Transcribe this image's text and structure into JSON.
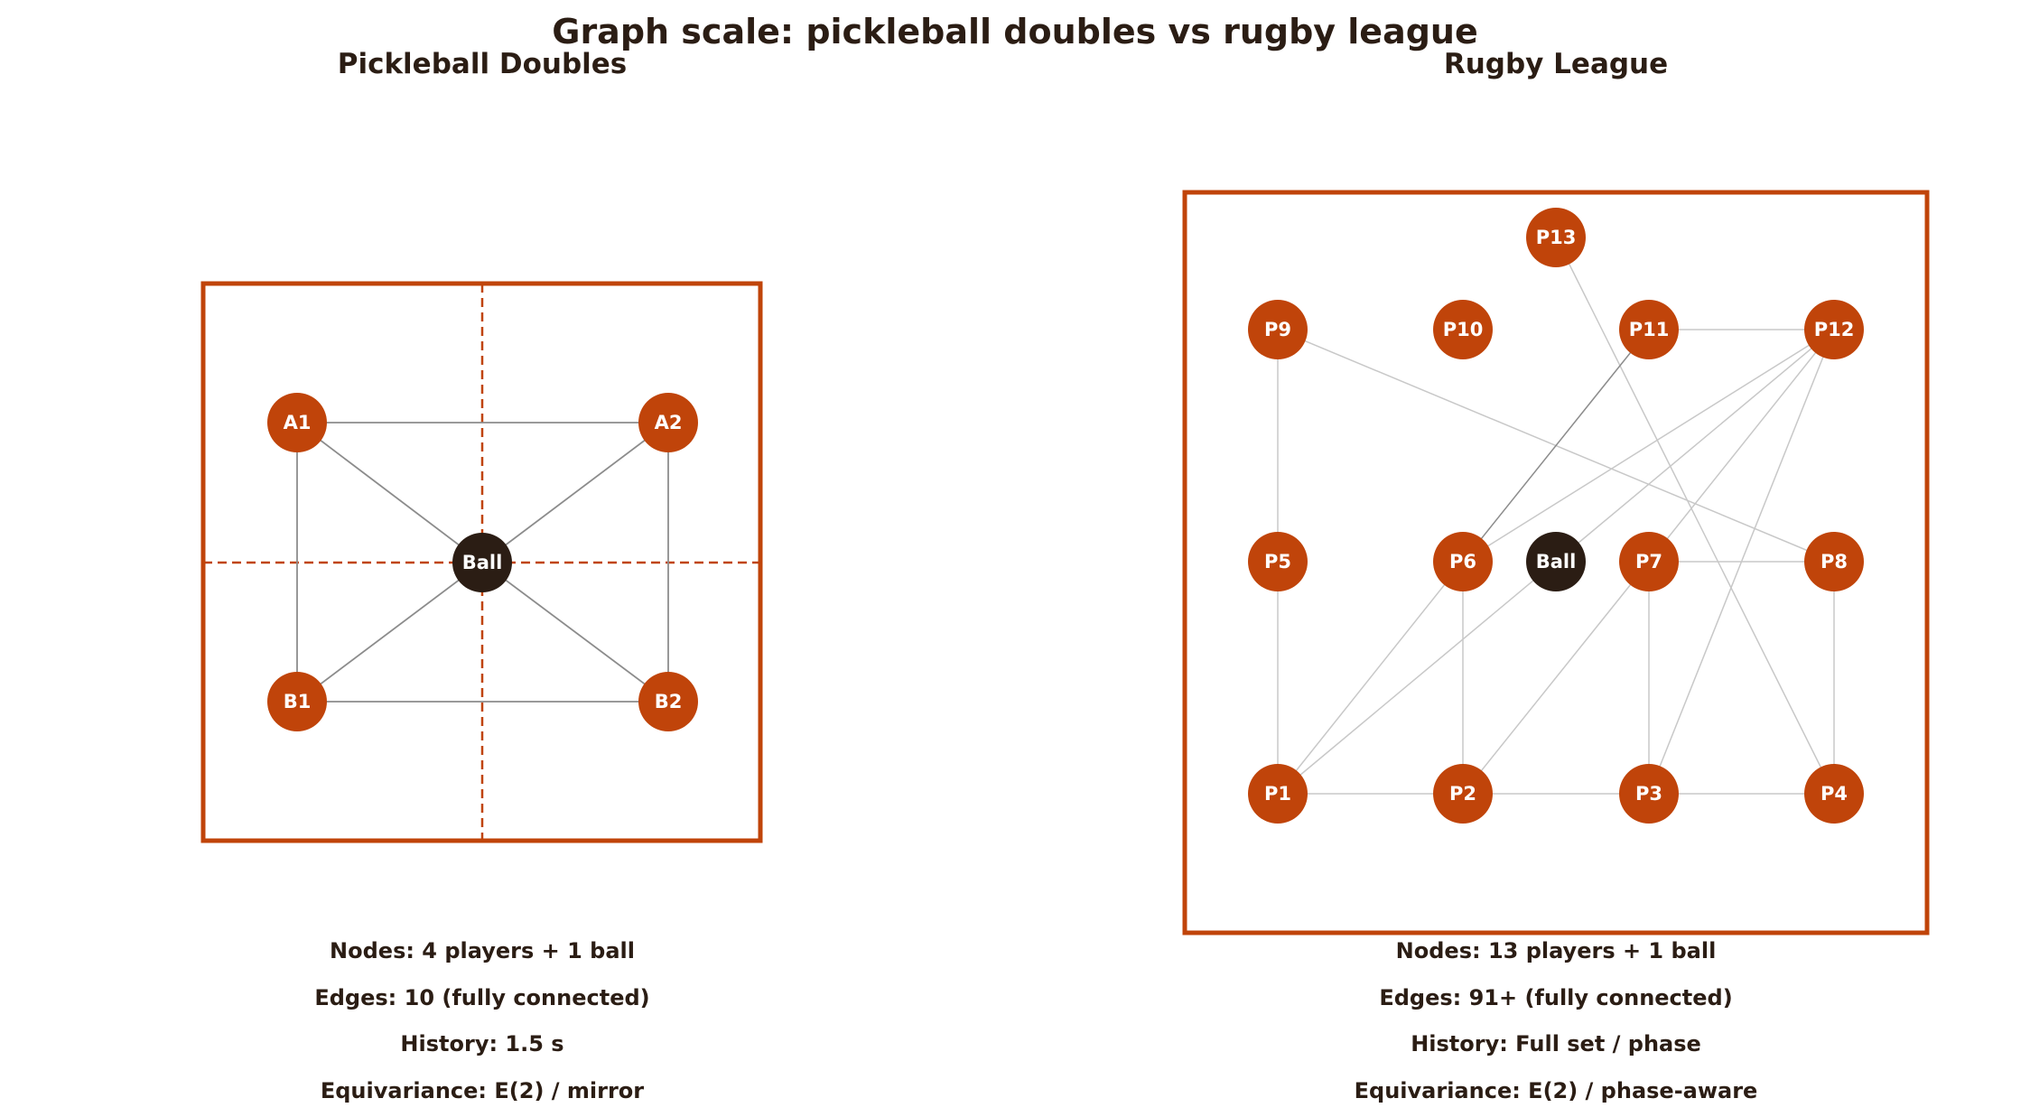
{
  "title": "Graph scale: pickleball doubles vs rugby league",
  "colors": {
    "text": "#2b1d14",
    "accent": "#c0440a",
    "ball": "#2b1d14",
    "node_label": "#ffffff",
    "edge_dark": "#8c8c8c",
    "edge_light": "#c8c8c8"
  },
  "panels": [
    {
      "key": "pickleball",
      "title": "Pickleball Doubles",
      "stats": [
        "Nodes: 4 players + 1 ball",
        "Edges: 10 (fully connected)",
        "History: 1.5 s",
        "Equivariance: E(2) / mirror"
      ],
      "nodes": [
        {
          "id": "A1",
          "label": "A1",
          "kind": "player"
        },
        {
          "id": "A2",
          "label": "A2",
          "kind": "player"
        },
        {
          "id": "Ball",
          "label": "Ball",
          "kind": "ball"
        },
        {
          "id": "B1",
          "label": "B1",
          "kind": "player"
        },
        {
          "id": "B2",
          "label": "B2",
          "kind": "player"
        }
      ],
      "edges": [
        [
          "A1",
          "A2"
        ],
        [
          "A1",
          "B1"
        ],
        [
          "A2",
          "B2"
        ],
        [
          "B1",
          "B2"
        ],
        [
          "A1",
          "Ball"
        ],
        [
          "A2",
          "Ball"
        ],
        [
          "B1",
          "Ball"
        ],
        [
          "B2",
          "Ball"
        ]
      ]
    },
    {
      "key": "rugby",
      "title": "Rugby League",
      "stats": [
        "Nodes: 13 players + 1 ball",
        "Edges: 91+ (fully connected)",
        "History: Full set / phase",
        "Equivariance: E(2) / phase-aware"
      ],
      "nodes": [
        {
          "id": "P13",
          "label": "P13",
          "kind": "player"
        },
        {
          "id": "P9",
          "label": "P9",
          "kind": "player"
        },
        {
          "id": "P10",
          "label": "P10",
          "kind": "player"
        },
        {
          "id": "P11",
          "label": "P11",
          "kind": "player"
        },
        {
          "id": "P12",
          "label": "P12",
          "kind": "player"
        },
        {
          "id": "P5",
          "label": "P5",
          "kind": "player"
        },
        {
          "id": "P6",
          "label": "P6",
          "kind": "player"
        },
        {
          "id": "Ball",
          "label": "Ball",
          "kind": "ball"
        },
        {
          "id": "P7",
          "label": "P7",
          "kind": "player"
        },
        {
          "id": "P8",
          "label": "P8",
          "kind": "player"
        },
        {
          "id": "P1",
          "label": "P1",
          "kind": "player"
        },
        {
          "id": "P2",
          "label": "P2",
          "kind": "player"
        },
        {
          "id": "P3",
          "label": "P3",
          "kind": "player"
        },
        {
          "id": "P4",
          "label": "P4",
          "kind": "player"
        }
      ],
      "edges": [
        [
          "P11",
          "P12"
        ],
        [
          "P9",
          "P5"
        ],
        [
          "P5",
          "P1"
        ],
        [
          "P9",
          "P8"
        ],
        [
          "P13",
          "P4"
        ],
        [
          "P11",
          "P6"
        ],
        [
          "P12",
          "P6"
        ],
        [
          "P12",
          "Ball"
        ],
        [
          "P12",
          "P7"
        ],
        [
          "P12",
          "P3"
        ],
        [
          "P7",
          "P8"
        ],
        [
          "P8",
          "P4"
        ],
        [
          "P6",
          "P2"
        ],
        [
          "P6",
          "P1"
        ],
        [
          "Ball",
          "P1"
        ],
        [
          "P7",
          "P2"
        ],
        [
          "P7",
          "P3"
        ],
        [
          "P1",
          "P2"
        ],
        [
          "P2",
          "P3"
        ],
        [
          "P3",
          "P4"
        ]
      ]
    }
  ]
}
